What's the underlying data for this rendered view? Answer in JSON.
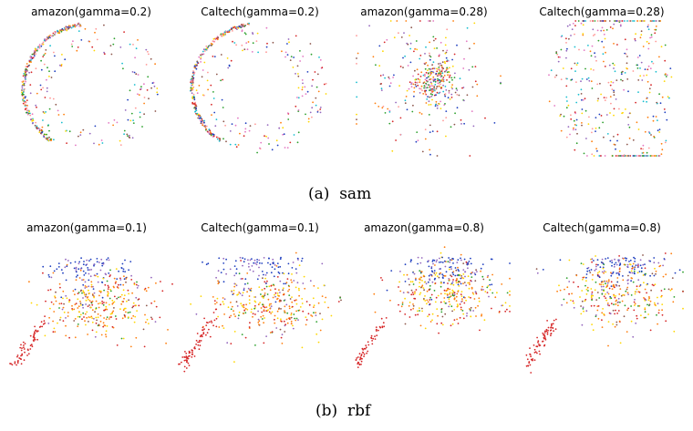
{
  "chart_data": [
    {
      "type": "scatter",
      "title": "amazon(gamma=0.2)",
      "group": "sam",
      "shape": "ring_dense_left",
      "seed": 11,
      "points": 420
    },
    {
      "type": "scatter",
      "title": "Caltech(gamma=0.2)",
      "group": "sam",
      "shape": "ring_dense_left",
      "seed": 23,
      "points": 420
    },
    {
      "type": "scatter",
      "title": "amazon(gamma=0.28)",
      "group": "sam",
      "shape": "cluster_center",
      "seed": 37,
      "points": 420
    },
    {
      "type": "scatter",
      "title": "Caltech(gamma=0.28)",
      "group": "sam",
      "shape": "fan_right",
      "seed": 41,
      "points": 420
    },
    {
      "type": "scatter",
      "title": "amazon(gamma=0.1)",
      "group": "rbf",
      "shape": "arch_tail",
      "seed": 53,
      "points": 480
    },
    {
      "type": "scatter",
      "title": "Caltech(gamma=0.1)",
      "group": "rbf",
      "shape": "arch_tail",
      "seed": 67,
      "points": 480
    },
    {
      "type": "scatter",
      "title": "amazon(gamma=0.8)",
      "group": "rbf",
      "shape": "arch_tail_tilt",
      "seed": 79,
      "points": 480
    },
    {
      "type": "scatter",
      "title": "Caltech(gamma=0.8)",
      "group": "rbf",
      "shape": "arch_tail_tilt",
      "seed": 83,
      "points": 480
    }
  ],
  "captions": {
    "sam": "(a)  sam",
    "rbf": "(b)  rbf"
  },
  "colors": [
    "#d62728",
    "#ff7f0e",
    "#ffd700",
    "#2ca02c",
    "#1f3fbf",
    "#9467bd",
    "#8c564b",
    "#e377c2",
    "#ff9896",
    "#17becf"
  ]
}
